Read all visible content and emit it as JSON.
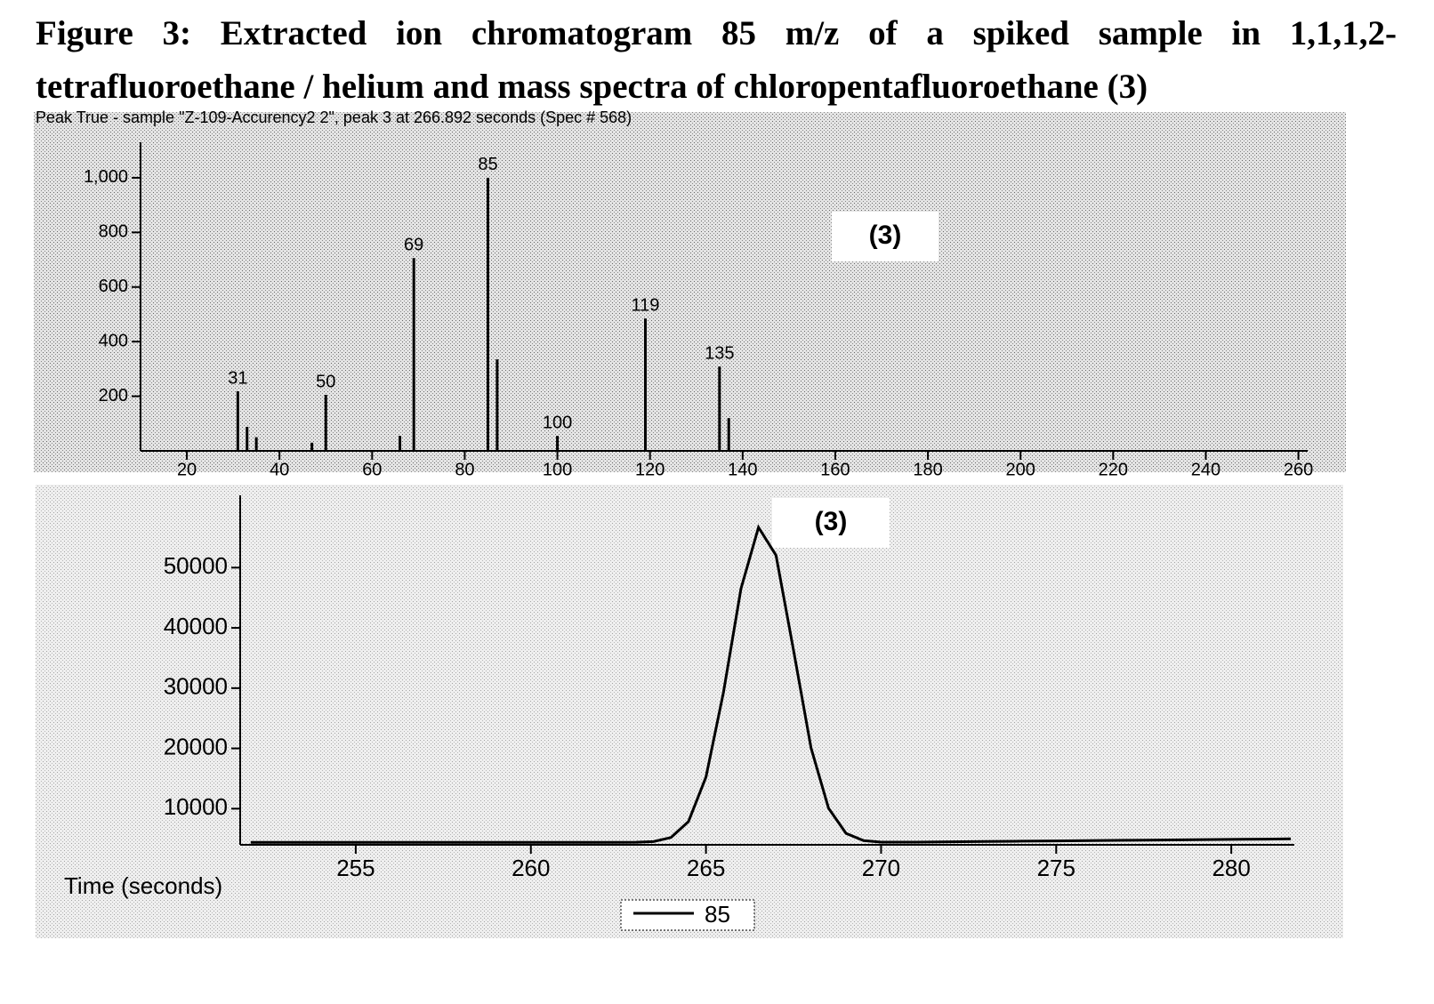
{
  "figure_title": "Figure 3: Extracted ion chromatogram 85 m/z of a spiked sample in 1,1,1,2-tetrafluoroethane / helium and mass spectra of chloropentafluoroethane (3)",
  "chart_data": [
    {
      "type": "bar",
      "subtitle": "Peak True - sample \"Z-109-Accurency2 2\", peak 3 at 266.892 seconds (Spec # 568)",
      "annotation": "(3)",
      "x": [
        31,
        33,
        35,
        47,
        50,
        66,
        69,
        85,
        87,
        100,
        119,
        135,
        137
      ],
      "values": [
        218,
        88,
        50,
        30,
        205,
        55,
        706,
        1000,
        335,
        55,
        485,
        309,
        120
      ],
      "x_labels": [
        "31",
        null,
        null,
        null,
        "50",
        null,
        "69",
        "85",
        null,
        "100",
        "119",
        "135",
        null
      ],
      "color": "#000000",
      "xlim": [
        10,
        262
      ],
      "ylim": [
        0,
        1130
      ],
      "xticks": [
        20,
        40,
        60,
        80,
        100,
        120,
        140,
        160,
        180,
        200,
        220,
        240,
        260
      ],
      "yticks": [
        200,
        400,
        600,
        800,
        {
          "value": 1000,
          "label": "1,000"
        }
      ]
    },
    {
      "type": "line",
      "annotation": "(3)",
      "x_label": "Time (seconds)",
      "x": [
        252,
        253,
        254,
        255,
        256,
        257,
        258,
        259,
        260,
        261,
        262,
        263,
        263.5,
        264,
        264.5,
        265,
        265.5,
        266,
        266.5,
        267,
        267.5,
        268,
        268.5,
        269,
        269.5,
        270,
        271,
        272,
        273,
        274,
        275,
        276,
        277,
        278,
        279,
        280,
        281,
        281.7
      ],
      "series": [
        {
          "name": "85",
          "color": "#000000",
          "values": [
            4400,
            4400,
            4400,
            4400,
            4400,
            4400,
            4400,
            4400,
            4400,
            4400,
            4400,
            4420,
            4540,
            5210,
            7860,
            15240,
            29320,
            46520,
            56690,
            52050,
            36300,
            20080,
            10080,
            5900,
            4700,
            4450,
            4450,
            4500,
            4550,
            4600,
            4650,
            4700,
            4750,
            4800,
            4850,
            4900,
            4950,
            5000
          ]
        }
      ],
      "xlim": [
        251.7,
        281.8
      ],
      "ylim": [
        4000,
        62000
      ],
      "xticks": [
        255,
        260,
        265,
        270,
        275,
        280
      ],
      "yticks": [
        10000,
        20000,
        30000,
        40000,
        50000
      ],
      "legend": "bottom"
    }
  ]
}
